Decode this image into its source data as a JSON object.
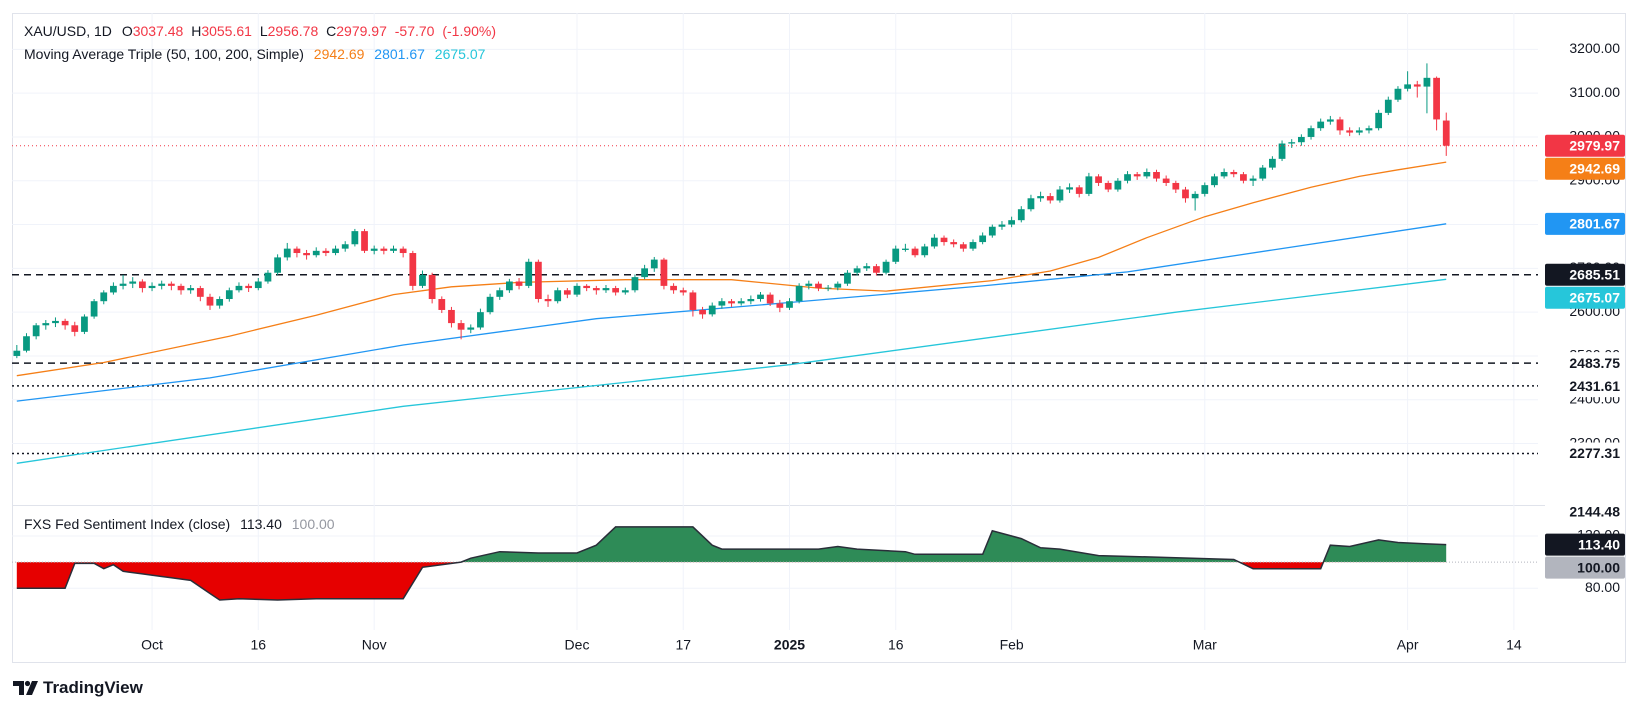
{
  "chart_data": {
    "type": "candlestick",
    "symbol": "XAU/USD, 1D",
    "ohlc_labels": [
      "O",
      "H",
      "L",
      "C"
    ],
    "change_label": "-57.70",
    "change_pct_label": "(-1.90%)",
    "up_color": "#089981",
    "down_color": "#f23645",
    "grid": true,
    "xlim": [
      -0.5,
      157.5
    ],
    "xticks": [
      {
        "value": 14,
        "label": "Oct"
      },
      {
        "value": 25,
        "label": "16"
      },
      {
        "value": 37,
        "label": "Nov"
      },
      {
        "value": 58,
        "label": "Dec"
      },
      {
        "value": 69,
        "label": "17"
      },
      {
        "value": 80,
        "label": "2025",
        "bold": true
      },
      {
        "value": 91,
        "label": "16"
      },
      {
        "value": 103,
        "label": "Feb"
      },
      {
        "value": 123,
        "label": "Mar"
      },
      {
        "value": 144,
        "label": "Apr"
      },
      {
        "value": 155,
        "label": "14"
      }
    ],
    "ylim": [
      2162,
      3283
    ],
    "yticks": [
      {
        "value": 3200,
        "label": "3200.00"
      },
      {
        "value": 3100,
        "label": "3100.00"
      },
      {
        "value": 3000,
        "label": "3000.00"
      },
      {
        "value": 2900,
        "label": "2900.00"
      },
      {
        "value": 2800,
        "label": "2800.00"
      },
      {
        "value": 2700,
        "label": "2700.00"
      },
      {
        "value": 2600,
        "label": "2600.00"
      },
      {
        "value": 2500,
        "label": "2500.00"
      },
      {
        "value": 2400,
        "label": "2400.00"
      },
      {
        "value": 2300,
        "label": "2300.00"
      }
    ],
    "candles": [
      [
        2500,
        2525,
        2495,
        2512
      ],
      [
        2512,
        2552,
        2508,
        2545
      ],
      [
        2545,
        2575,
        2538,
        2570
      ],
      [
        2570,
        2582,
        2560,
        2575
      ],
      [
        2575,
        2588,
        2566,
        2580
      ],
      [
        2580,
        2585,
        2560,
        2570
      ],
      [
        2570,
        2578,
        2545,
        2555
      ],
      [
        2555,
        2595,
        2550,
        2590
      ],
      [
        2590,
        2630,
        2585,
        2625
      ],
      [
        2625,
        2650,
        2618,
        2645
      ],
      [
        2645,
        2668,
        2640,
        2660
      ],
      [
        2660,
        2685,
        2652,
        2665
      ],
      [
        2665,
        2680,
        2655,
        2670
      ],
      [
        2670,
        2675,
        2645,
        2655
      ],
      [
        2655,
        2668,
        2648,
        2660
      ],
      [
        2660,
        2672,
        2652,
        2665
      ],
      [
        2665,
        2670,
        2650,
        2660
      ],
      [
        2660,
        2665,
        2640,
        2650
      ],
      [
        2650,
        2662,
        2642,
        2655
      ],
      [
        2655,
        2660,
        2625,
        2635
      ],
      [
        2635,
        2642,
        2605,
        2615
      ],
      [
        2615,
        2636,
        2608,
        2630
      ],
      [
        2630,
        2656,
        2624,
        2650
      ],
      [
        2650,
        2668,
        2645,
        2660
      ],
      [
        2660,
        2665,
        2646,
        2655
      ],
      [
        2655,
        2678,
        2650,
        2670
      ],
      [
        2670,
        2696,
        2665,
        2690
      ],
      [
        2690,
        2732,
        2685,
        2725
      ],
      [
        2725,
        2758,
        2718,
        2745
      ],
      [
        2745,
        2750,
        2725,
        2735
      ],
      [
        2735,
        2742,
        2720,
        2730
      ],
      [
        2730,
        2748,
        2725,
        2740
      ],
      [
        2740,
        2746,
        2728,
        2735
      ],
      [
        2735,
        2752,
        2730,
        2745
      ],
      [
        2745,
        2762,
        2738,
        2755
      ],
      [
        2755,
        2790,
        2750,
        2785
      ],
      [
        2785,
        2790,
        2735,
        2740
      ],
      [
        2740,
        2752,
        2732,
        2745
      ],
      [
        2745,
        2750,
        2732,
        2740
      ],
      [
        2740,
        2752,
        2735,
        2745
      ],
      [
        2745,
        2750,
        2725,
        2735
      ],
      [
        2735,
        2740,
        2650,
        2660
      ],
      [
        2660,
        2695,
        2655,
        2685
      ],
      [
        2685,
        2690,
        2620,
        2630
      ],
      [
        2630,
        2636,
        2598,
        2605
      ],
      [
        2605,
        2612,
        2565,
        2575
      ],
      [
        2575,
        2582,
        2538,
        2560
      ],
      [
        2560,
        2572,
        2552,
        2565
      ],
      [
        2565,
        2608,
        2560,
        2600
      ],
      [
        2600,
        2642,
        2595,
        2635
      ],
      [
        2635,
        2656,
        2628,
        2650
      ],
      [
        2650,
        2676,
        2644,
        2670
      ],
      [
        2670,
        2678,
        2652,
        2660
      ],
      [
        2660,
        2722,
        2655,
        2715
      ],
      [
        2715,
        2720,
        2622,
        2630
      ],
      [
        2630,
        2640,
        2612,
        2625
      ],
      [
        2625,
        2656,
        2620,
        2650
      ],
      [
        2650,
        2655,
        2632,
        2640
      ],
      [
        2640,
        2666,
        2635,
        2660
      ],
      [
        2660,
        2664,
        2648,
        2655
      ],
      [
        2655,
        2660,
        2640,
        2650
      ],
      [
        2650,
        2662,
        2644,
        2655
      ],
      [
        2655,
        2660,
        2638,
        2645
      ],
      [
        2645,
        2656,
        2640,
        2650
      ],
      [
        2650,
        2686,
        2645,
        2680
      ],
      [
        2680,
        2708,
        2675,
        2700
      ],
      [
        2700,
        2726,
        2692,
        2720
      ],
      [
        2720,
        2724,
        2652,
        2660
      ],
      [
        2660,
        2666,
        2642,
        2650
      ],
      [
        2650,
        2656,
        2638,
        2645
      ],
      [
        2645,
        2650,
        2590,
        2605
      ],
      [
        2605,
        2612,
        2585,
        2595
      ],
      [
        2595,
        2622,
        2590,
        2615
      ],
      [
        2615,
        2632,
        2608,
        2625
      ],
      [
        2625,
        2630,
        2612,
        2620
      ],
      [
        2620,
        2632,
        2615,
        2625
      ],
      [
        2625,
        2638,
        2618,
        2630
      ],
      [
        2630,
        2646,
        2624,
        2640
      ],
      [
        2640,
        2645,
        2614,
        2620
      ],
      [
        2620,
        2628,
        2600,
        2610
      ],
      [
        2610,
        2632,
        2605,
        2625
      ],
      [
        2625,
        2666,
        2620,
        2660
      ],
      [
        2660,
        2672,
        2652,
        2665
      ],
      [
        2665,
        2670,
        2648,
        2655
      ],
      [
        2655,
        2662,
        2648,
        2656
      ],
      [
        2656,
        2670,
        2650,
        2665
      ],
      [
        2665,
        2696,
        2660,
        2690
      ],
      [
        2690,
        2706,
        2684,
        2700
      ],
      [
        2700,
        2712,
        2694,
        2705
      ],
      [
        2705,
        2710,
        2684,
        2690
      ],
      [
        2690,
        2720,
        2686,
        2715
      ],
      [
        2715,
        2752,
        2710,
        2745
      ],
      [
        2742,
        2756,
        2738,
        2745
      ],
      [
        2745,
        2750,
        2725,
        2730
      ],
      [
        2730,
        2756,
        2725,
        2750
      ],
      [
        2750,
        2778,
        2745,
        2770
      ],
      [
        2770,
        2775,
        2752,
        2760
      ],
      [
        2760,
        2766,
        2748,
        2755
      ],
      [
        2755,
        2760,
        2738,
        2745
      ],
      [
        2745,
        2766,
        2740,
        2760
      ],
      [
        2760,
        2782,
        2755,
        2775
      ],
      [
        2775,
        2800,
        2770,
        2795
      ],
      [
        2795,
        2808,
        2788,
        2800
      ],
      [
        2800,
        2818,
        2794,
        2810
      ],
      [
        2810,
        2842,
        2805,
        2835
      ],
      [
        2835,
        2868,
        2830,
        2860
      ],
      [
        2860,
        2875,
        2852,
        2865
      ],
      [
        2865,
        2872,
        2848,
        2855
      ],
      [
        2855,
        2888,
        2850,
        2880
      ],
      [
        2880,
        2894,
        2872,
        2885
      ],
      [
        2885,
        2890,
        2862,
        2870
      ],
      [
        2870,
        2918,
        2865,
        2910
      ],
      [
        2910,
        2915,
        2888,
        2895
      ],
      [
        2895,
        2900,
        2874,
        2880
      ],
      [
        2880,
        2906,
        2875,
        2900
      ],
      [
        2900,
        2922,
        2894,
        2915
      ],
      [
        2915,
        2920,
        2902,
        2910
      ],
      [
        2910,
        2928,
        2905,
        2920
      ],
      [
        2920,
        2925,
        2898,
        2905
      ],
      [
        2905,
        2912,
        2888,
        2895
      ],
      [
        2895,
        2900,
        2872,
        2880
      ],
      [
        2880,
        2886,
        2850,
        2860
      ],
      [
        2860,
        2876,
        2832,
        2870
      ],
      [
        2870,
        2896,
        2864,
        2890
      ],
      [
        2890,
        2916,
        2885,
        2910
      ],
      [
        2910,
        2928,
        2905,
        2920
      ],
      [
        2920,
        2925,
        2908,
        2915
      ],
      [
        2915,
        2920,
        2894,
        2900
      ],
      [
        2900,
        2912,
        2888,
        2905
      ],
      [
        2905,
        2936,
        2900,
        2930
      ],
      [
        2930,
        2956,
        2925,
        2950
      ],
      [
        2950,
        2992,
        2945,
        2985
      ],
      [
        2985,
        2995,
        2975,
        2988
      ],
      [
        2988,
        3006,
        2980,
        3000
      ],
      [
        3000,
        3026,
        2994,
        3020
      ],
      [
        3020,
        3042,
        3014,
        3035
      ],
      [
        3035,
        3048,
        3028,
        3040
      ],
      [
        3040,
        3046,
        3005,
        3015
      ],
      [
        3015,
        3022,
        3002,
        3010
      ],
      [
        3010,
        3022,
        3004,
        3015
      ],
      [
        3015,
        3026,
        3008,
        3020
      ],
      [
        3020,
        3062,
        3015,
        3055
      ],
      [
        3055,
        3092,
        3050,
        3085
      ],
      [
        3085,
        3116,
        3080,
        3110
      ],
      [
        3110,
        3150,
        3104,
        3120
      ],
      [
        3120,
        3128,
        3090,
        3115
      ],
      [
        3115,
        3168,
        3054,
        3135
      ],
      [
        3135,
        3138,
        3015,
        3040
      ],
      [
        3037.48,
        3055.61,
        2956.78,
        2979.97
      ]
    ],
    "ma_title": "Moving Average Triple (50, 100, 200, Simple)",
    "moving_averages": [
      {
        "color": "#f57f17",
        "x": [
          0,
          9,
          22,
          31,
          39,
          45,
          52,
          63,
          74,
          83,
          90,
          101,
          107,
          112,
          117,
          123,
          128,
          134,
          139,
          143,
          148
        ],
        "values": [
          2455,
          2485,
          2545,
          2593,
          2640,
          2658,
          2668,
          2674,
          2674,
          2655,
          2648,
          2672,
          2694,
          2725,
          2770,
          2818,
          2850,
          2885,
          2910,
          2925,
          2942.69
        ]
      },
      {
        "color": "#2196f3",
        "x": [
          0,
          20,
          40,
          60,
          80,
          100,
          115,
          130,
          148
        ],
        "values": [
          2397,
          2450,
          2525,
          2585,
          2622,
          2660,
          2692,
          2742,
          2801.67
        ]
      },
      {
        "color": "#26c6da",
        "x": [
          0,
          40,
          80,
          120,
          148
        ],
        "values": [
          2255,
          2385,
          2480,
          2600,
          2675.07
        ]
      }
    ],
    "levels": [
      {
        "value": 2685.51,
        "style": "dashed",
        "badge": "dark"
      },
      {
        "value": 2483.75,
        "style": "dashed",
        "badge": "light"
      },
      {
        "value": 2431.61,
        "style": "dotted",
        "badge": "light"
      },
      {
        "value": 2277.31,
        "style": "dotted",
        "badge": "light"
      },
      {
        "value": 2144.48,
        "style": "none",
        "badge": "light"
      }
    ],
    "indicator": {
      "type": "area",
      "title": "FXS Fed Sentiment Index (close)",
      "x": [
        0,
        5,
        6,
        8,
        9,
        10,
        11,
        13,
        15,
        16,
        18,
        20,
        21,
        23,
        27,
        31,
        40,
        42,
        46,
        47,
        50,
        54,
        58,
        60,
        62,
        70,
        72,
        73,
        83,
        85,
        87,
        92,
        93,
        100,
        101,
        104,
        106,
        108,
        112,
        117,
        126,
        128,
        135,
        136,
        138,
        141,
        143,
        146,
        148
      ],
      "values": [
        80,
        80,
        99,
        99,
        95,
        98,
        93,
        91,
        89,
        88,
        86,
        76,
        71,
        72,
        71,
        72,
        72,
        96,
        100,
        103,
        108,
        107,
        107,
        113,
        127,
        127,
        113,
        110,
        110,
        112,
        110,
        108,
        106,
        106,
        124,
        118,
        111,
        110,
        105,
        104,
        102,
        95,
        95,
        113,
        112,
        117,
        115,
        114,
        113.4
      ],
      "value_label": "113.40",
      "baseline": {
        "value": 100,
        "label": "100.00"
      },
      "ylim": [
        48,
        143
      ],
      "yticks": [
        {
          "value": 120,
          "label": "120.00"
        },
        {
          "value": 80,
          "label": "80.00"
        }
      ],
      "up_color": "#2e8b57",
      "down_color": "#e60000",
      "line_color": "#2a2e39"
    },
    "footer": "TradingView"
  }
}
